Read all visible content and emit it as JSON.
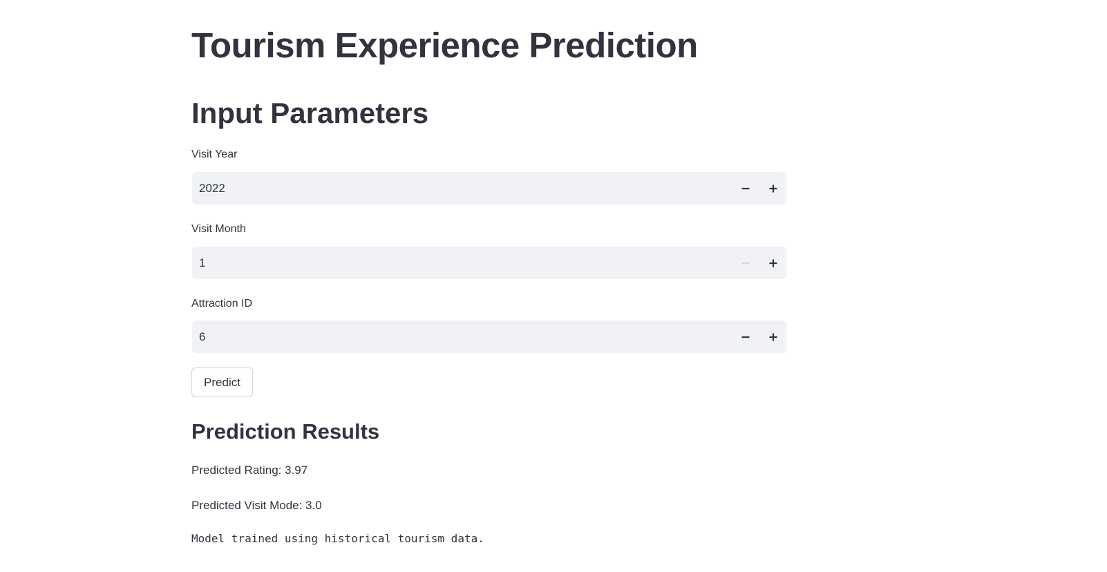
{
  "page": {
    "title": "Tourism Experience Prediction"
  },
  "inputs": {
    "heading": "Input Parameters",
    "fields": [
      {
        "label": "Visit Year",
        "value": "2022",
        "minus_enabled": true,
        "plus_enabled": true
      },
      {
        "label": "Visit Month",
        "value": "1",
        "minus_enabled": false,
        "plus_enabled": true
      },
      {
        "label": "Attraction ID",
        "value": "6",
        "minus_enabled": true,
        "plus_enabled": true
      }
    ],
    "predict_label": "Predict"
  },
  "results": {
    "heading": "Prediction Results",
    "rating_text": "Predicted Rating: 3.97",
    "visit_mode_text": "Predicted Visit Mode: 3.0",
    "note": "Model trained using historical tourism data."
  },
  "icons": {
    "decrement": "minus-icon",
    "increment": "plus-icon"
  },
  "colors": {
    "text": "#31333F",
    "input_bg": "#F0F2F6",
    "disabled_icon": "#D5D7DC",
    "button_border": "#D0D3DA"
  }
}
